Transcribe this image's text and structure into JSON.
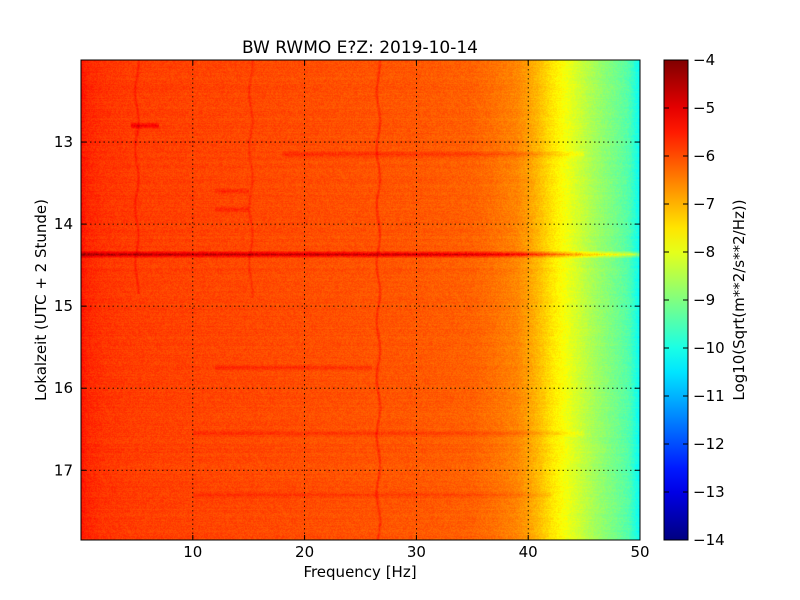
{
  "chart_data": {
    "type": "heatmap",
    "title": "BW RWMO E?Z: 2019-10-14",
    "xlabel": "Frequency [Hz]",
    "ylabel": "Lokalzeit (UTC + 2 Stunde)",
    "xlim": [
      0,
      50
    ],
    "ylim": [
      12.0,
      17.85
    ],
    "y_inverted": true,
    "x_ticks": [
      10,
      20,
      30,
      40,
      50
    ],
    "y_ticks": [
      13,
      14,
      15,
      16,
      17
    ],
    "grid": true,
    "colormap": "jet",
    "colorbar": {
      "label": "Log10(Sqrt(m**2/s**2/Hz))",
      "range": [
        -14,
        -4
      ],
      "ticks": [
        -4,
        -5,
        -6,
        -7,
        -8,
        -9,
        -10,
        -11,
        -12,
        -13,
        -14
      ]
    },
    "spectrum_profile": {
      "frequency_hz": [
        0,
        0.5,
        2,
        5,
        10,
        15,
        20,
        25,
        30,
        35,
        37,
        39,
        40,
        41,
        42,
        43,
        44,
        45,
        46,
        47,
        48,
        49,
        50
      ],
      "log_amplitude": [
        -5.4,
        -5.6,
        -5.75,
        -5.85,
        -5.9,
        -5.95,
        -6.0,
        -6.05,
        -6.1,
        -6.2,
        -6.35,
        -6.55,
        -6.8,
        -7.1,
        -7.45,
        -7.75,
        -8.05,
        -8.35,
        -8.65,
        -8.9,
        -9.15,
        -9.45,
        -10.2
      ]
    },
    "horizontal_features": [
      {
        "time": 14.37,
        "freq_range": [
          0,
          50
        ],
        "delta": 1.3
      },
      {
        "time": 13.15,
        "freq_range": [
          18,
          45
        ],
        "delta": 0.4
      },
      {
        "time": 12.8,
        "freq_range": [
          4.5,
          7
        ],
        "delta": 0.7
      },
      {
        "time": 13.6,
        "freq_range": [
          12,
          15
        ],
        "delta": 0.35
      },
      {
        "time": 13.82,
        "freq_range": [
          12,
          15
        ],
        "delta": 0.35
      },
      {
        "time": 15.75,
        "freq_range": [
          12,
          26
        ],
        "delta": 0.3
      },
      {
        "time": 16.55,
        "freq_range": [
          10,
          45
        ],
        "delta": 0.3
      },
      {
        "time": 17.3,
        "freq_range": [
          10,
          42
        ],
        "delta": 0.3
      }
    ],
    "vertical_features": [
      {
        "freq": 26.6,
        "time_range": [
          12.0,
          17.85
        ],
        "delta": 0.45
      },
      {
        "freq": 5.0,
        "time_range": [
          12.0,
          14.85
        ],
        "delta": 0.35
      },
      {
        "freq": 15.2,
        "time_range": [
          12.0,
          14.9
        ],
        "delta": 0.3
      }
    ]
  }
}
